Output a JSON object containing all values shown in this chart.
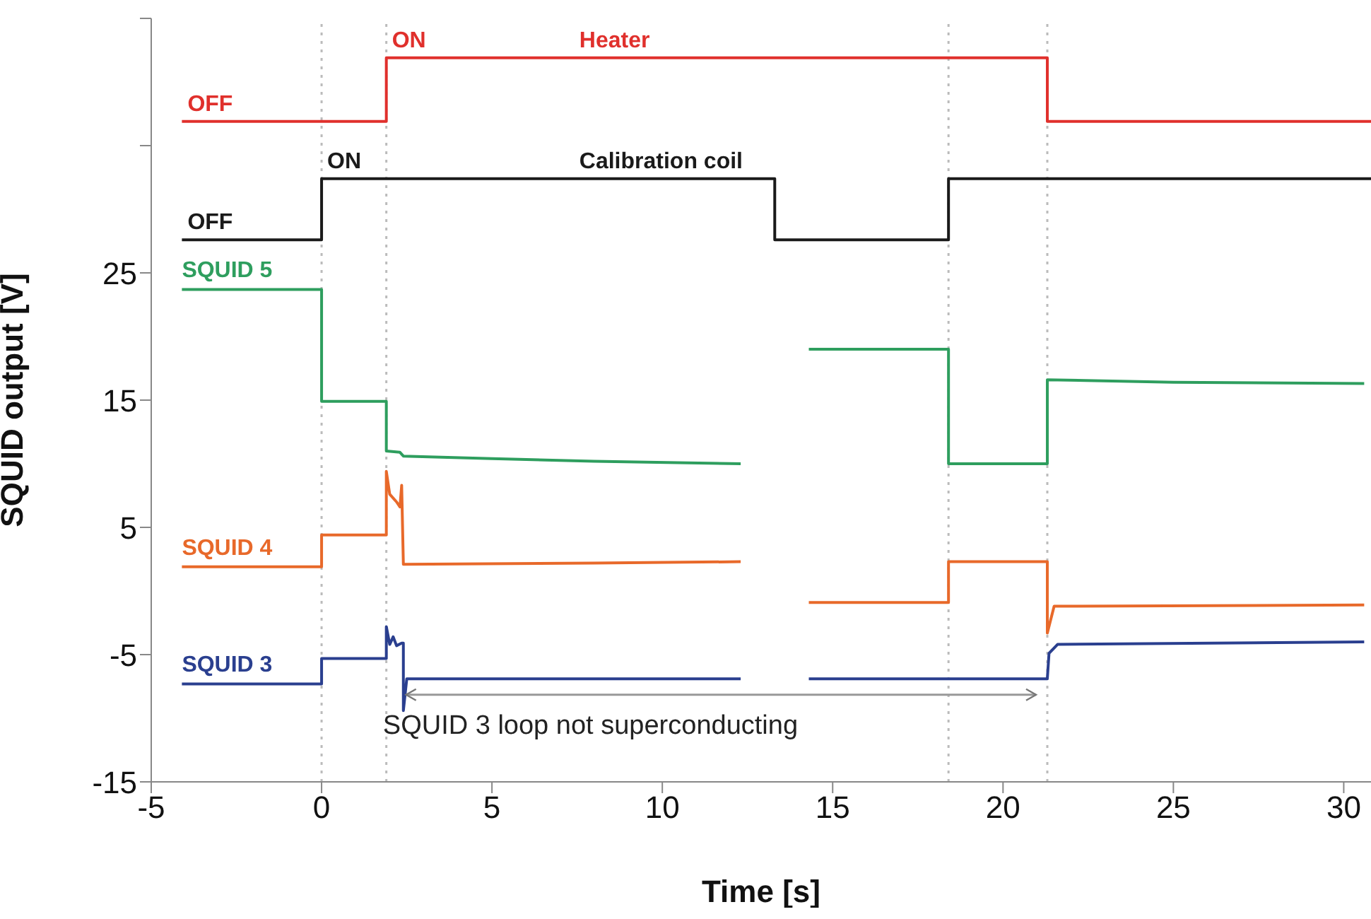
{
  "chart_data": {
    "type": "line",
    "xlabel": "Time [s]",
    "ylabel": "SQUID output [V]",
    "xlim": [
      -5,
      30.8
    ],
    "xticks": [
      -5,
      0,
      5,
      10,
      15,
      20,
      25,
      30
    ],
    "ylim": [
      -15,
      45
    ],
    "yticks": [
      -15,
      -5,
      5,
      15,
      25,
      {
        "value": 35,
        "label": null
      },
      {
        "value": 45,
        "label": null
      }
    ],
    "grid": false,
    "legend": false,
    "marker": "none",
    "line_style": "solid",
    "series": [
      {
        "color": "#e0302c",
        "x": [
          -4.1,
          1.9,
          1.9,
          21.3,
          21.3,
          30.8
        ],
        "values": [
          36.9,
          36.9,
          41.9,
          41.9,
          36.9,
          36.9
        ]
      },
      {
        "color": "#1a1a1a",
        "x": [
          -4.1,
          0,
          0,
          13.3,
          13.3,
          18.4,
          18.4,
          30.8
        ],
        "values": [
          27.6,
          27.6,
          32.4,
          32.4,
          27.6,
          27.6,
          32.4,
          32.4
        ]
      },
      {
        "name": "SQUID 5",
        "color": "#2e9e5e",
        "x": [
          -4.1,
          0,
          0,
          1.9,
          1.9,
          2.3,
          2.4,
          5,
          8,
          12.3,
          13.3,
          14.3,
          18.4,
          18.4,
          21.3,
          21.3,
          25,
          30.6
        ],
        "values": [
          23.7,
          23.7,
          14.9,
          14.9,
          11.0,
          10.9,
          10.6,
          10.4,
          10.2,
          10.0,
          null,
          19.0,
          19.0,
          10.0,
          10.0,
          16.6,
          16.4,
          16.3
        ]
      },
      {
        "name": "SQUID 4",
        "color": "#e8692a",
        "x": [
          -4.1,
          0,
          0,
          1.9,
          1.9,
          2.0,
          2.2,
          2.3,
          2.35,
          2.4,
          8,
          12.3,
          13.3,
          14.3,
          18.4,
          18.4,
          21.3,
          21.3,
          21.5,
          30.6
        ],
        "values": [
          1.9,
          1.9,
          4.4,
          4.4,
          9.4,
          7.6,
          7.0,
          6.6,
          8.3,
          2.1,
          2.2,
          2.3,
          null,
          -0.9,
          -0.9,
          2.3,
          2.3,
          -3.3,
          -1.2,
          -1.1
        ]
      },
      {
        "name": "SQUID 3",
        "color": "#2a3f8f",
        "x": [
          -4.1,
          0,
          0,
          1.9,
          1.9,
          2.0,
          2.1,
          2.2,
          2.35,
          2.4,
          2.4,
          2.5,
          12.3,
          13.3,
          14.3,
          21.3,
          21.35,
          21.6,
          30.6
        ],
        "values": [
          -7.3,
          -7.3,
          -5.3,
          -5.3,
          -2.8,
          -4.2,
          -3.6,
          -4.3,
          -4.1,
          -4.1,
          -9.4,
          -6.9,
          -6.9,
          null,
          -6.9,
          -6.9,
          -4.9,
          -4.2,
          -4.0
        ]
      }
    ],
    "ref_lines": [
      {
        "axis": "x",
        "value": 0,
        "color": "#bbbbbb",
        "line_style": "dotted"
      },
      {
        "axis": "x",
        "value": 1.9,
        "color": "#bbbbbb",
        "line_style": "dotted"
      },
      {
        "axis": "x",
        "value": 18.4,
        "color": "#bbbbbb",
        "line_style": "dotted"
      },
      {
        "axis": "x",
        "value": 21.3,
        "color": "#bbbbbb",
        "line_style": "dotted"
      }
    ],
    "annotations": [
      {
        "text": "OFF",
        "x": -4.1,
        "y": 36.9
      },
      {
        "text": "ON",
        "x": 1.9,
        "y": 41.9
      },
      {
        "text": "Heater",
        "x": 7.4,
        "y": 41.9
      },
      {
        "text": "OFF",
        "x": -4.1,
        "y": 27.6
      },
      {
        "text": "ON",
        "x": 0,
        "y": 32.4
      },
      {
        "text": "Calibration coil",
        "x": 7.4,
        "y": 32.4
      },
      {
        "text": "SQUID 3 loop not superconducting",
        "x": 1.8,
        "y": -10.6
      }
    ]
  }
}
